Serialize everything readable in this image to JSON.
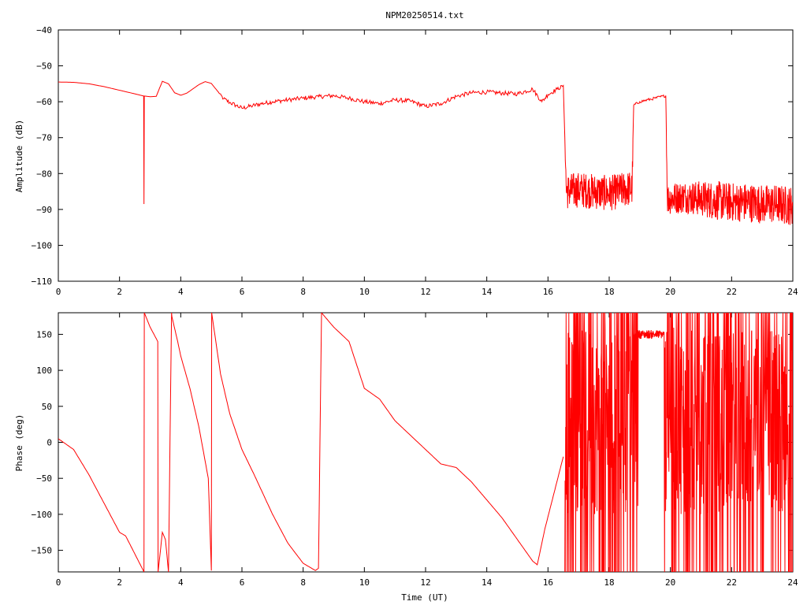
{
  "chart_data": [
    {
      "type": "line",
      "title": "NPM20250514.txt",
      "xlabel": "",
      "ylabel": "Amplitude (dB)",
      "xlim": [
        0,
        24
      ],
      "ylim": [
        -110,
        -40
      ],
      "xticks": [
        0,
        2,
        4,
        6,
        8,
        10,
        12,
        14,
        16,
        18,
        20,
        22,
        24
      ],
      "yticks": [
        -110,
        -100,
        -90,
        -80,
        -70,
        -60,
        -50,
        -40
      ],
      "color": "#ff0000",
      "series": [
        {
          "x": [
            0,
            0.5,
            1,
            1.5,
            2,
            2.5,
            2.79,
            2.8,
            2.81,
            3.0,
            3.2,
            3.4,
            3.6,
            3.8,
            4.0,
            4.2,
            4.4,
            4.6,
            4.8,
            5.0,
            5.2,
            5.4,
            5.6,
            5.8,
            6.0,
            6.3,
            6.6,
            7.0,
            7.5,
            8.0,
            8.5,
            9.0,
            9.5,
            10.0,
            10.5,
            11.0,
            11.5,
            12.0,
            12.5,
            13.0,
            13.5,
            14.0,
            14.5,
            15.0,
            15.5,
            15.8,
            16.0,
            16.3,
            16.5,
            16.55,
            16.6,
            17.0,
            17.5,
            18.0,
            18.5,
            18.75,
            18.8,
            19.0,
            19.5,
            19.85,
            19.9,
            20.5,
            21.0,
            21.5,
            22.0,
            22.5,
            23.0,
            23.5,
            24.0
          ],
          "y": [
            -54.5,
            -54.6,
            -55.0,
            -55.8,
            -56.8,
            -57.8,
            -58.4,
            -88.5,
            -58.4,
            -58.6,
            -58.5,
            -54.3,
            -55.0,
            -57.5,
            -58.2,
            -57.6,
            -56.4,
            -55.2,
            -54.4,
            -54.9,
            -57.0,
            -59.2,
            -60.2,
            -61.0,
            -61.8,
            -61.2,
            -60.6,
            -60.0,
            -59.5,
            -59.0,
            -58.6,
            -58.3,
            -59.0,
            -60.0,
            -60.5,
            -59.5,
            -59.8,
            -61.3,
            -60.5,
            -58.5,
            -57.5,
            -57.3,
            -57.6,
            -57.8,
            -56.5,
            -60.0,
            -58.0,
            -56.5,
            -55.5,
            -70.0,
            -85.0,
            -84.5,
            -85.0,
            -85.5,
            -84.5,
            -84.0,
            -61.0,
            -60.0,
            -59.0,
            -58.3,
            -87.0,
            -86.5,
            -87.0,
            -87.5,
            -88.0,
            -88.0,
            -88.5,
            -88.5,
            -89.0
          ],
          "noise": [
            0,
            0,
            0,
            0,
            0,
            0,
            0,
            0,
            0,
            0,
            0,
            0,
            0,
            0,
            0,
            0,
            0,
            0,
            0,
            0,
            0,
            0.6,
            0.6,
            0.6,
            0.6,
            0.6,
            0.6,
            0.6,
            0.6,
            0.6,
            0.6,
            0.6,
            0.6,
            0.6,
            0.6,
            0.6,
            0.6,
            0.6,
            0.6,
            0.6,
            0.6,
            0.6,
            0.6,
            0.6,
            0.6,
            0.6,
            0.6,
            0.6,
            0.4,
            0,
            5,
            5,
            5,
            5,
            5,
            5,
            0.4,
            0.4,
            0.4,
            0.4,
            4.5,
            4.5,
            5,
            5.5,
            5.5,
            5.5,
            5.5,
            5.5,
            5.5
          ]
        }
      ]
    },
    {
      "type": "line",
      "title": "",
      "xlabel": "Time (UT)",
      "ylabel": "Phase (deg)",
      "xlim": [
        0,
        24
      ],
      "ylim": [
        -180,
        180
      ],
      "xticks": [
        0,
        2,
        4,
        6,
        8,
        10,
        12,
        14,
        16,
        18,
        20,
        22,
        24
      ],
      "yticks": [
        -150,
        -100,
        -50,
        0,
        50,
        100,
        150
      ],
      "color": "#ff0000",
      "series": [
        {
          "x": [
            0,
            0.5,
            1.0,
            1.5,
            2.0,
            2.2,
            2.5,
            2.8,
            2.81,
            3.0,
            3.25,
            3.26,
            3.4,
            3.5,
            3.6,
            3.7,
            3.71,
            3.9,
            4.0,
            4.3,
            4.6,
            4.9,
            5.0,
            5.01,
            5.3,
            5.6,
            6.0,
            6.4,
            7.0,
            7.5,
            8.0,
            8.4,
            8.5,
            8.6,
            8.7,
            8.8,
            9.0,
            9.5,
            10.0,
            10.5,
            11.0,
            11.5,
            12.0,
            12.5,
            13.0,
            13.5,
            14.0,
            14.5,
            15.0,
            15.5,
            15.65,
            15.9,
            16.2,
            16.5
          ],
          "y": [
            5,
            -10,
            -45,
            -85,
            -125,
            -130,
            -155,
            -180,
            180,
            160,
            140,
            -180,
            -125,
            -135,
            -180,
            180,
            175,
            140,
            120,
            75,
            20,
            -50,
            -178,
            180,
            95,
            40,
            -10,
            -45,
            -100,
            -140,
            -168,
            -178,
            -175,
            180,
            175,
            170,
            160,
            140,
            75,
            60,
            30,
            10,
            -10,
            -30,
            -35,
            -55,
            -80,
            -105,
            -135,
            -165,
            -170,
            -120,
            -70,
            -20
          ]
        },
        {
          "x": [
            16.55,
            24.0
          ],
          "y": [
            -180,
            180
          ],
          "noise_region": true
        }
      ]
    }
  ]
}
